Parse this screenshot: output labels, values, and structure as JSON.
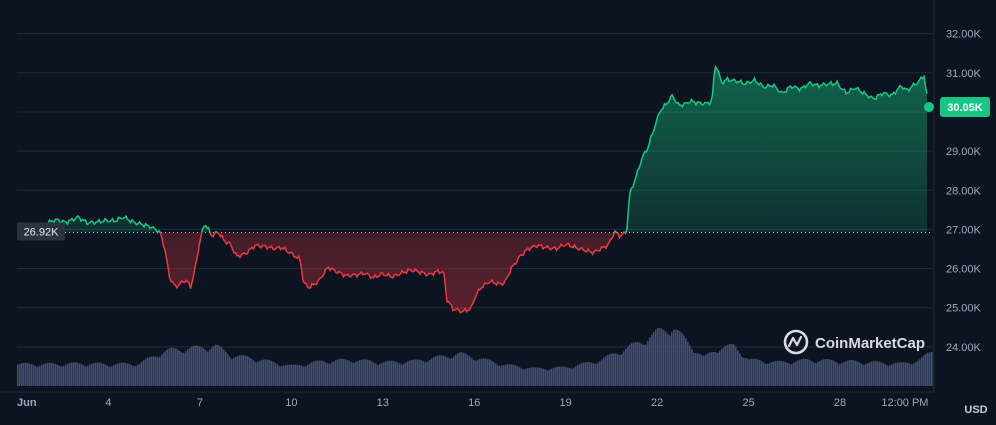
{
  "watermark": {
    "brand": "CoinMarketCap"
  },
  "colors": {
    "background": "#0d1421",
    "grid": "#222a38",
    "up": "#16c784",
    "down": "#ea3943",
    "volume": "#4b5a86",
    "axis_text": "#a1a7bb",
    "baseline_dots": "#b8bdcc",
    "ref_label_bg": "#2b3242"
  },
  "chart_data": {
    "type": "area",
    "currency_label": "USD",
    "reference_value": 26920,
    "reference_label": "26.92K",
    "current_value": 30050,
    "current_label": "30.05K",
    "y_axis": {
      "ticks": [
        24000,
        25000,
        26000,
        27000,
        28000,
        29000,
        30000,
        31000,
        32000
      ],
      "tick_labels": [
        "24.00K",
        "25.00K",
        "26.00K",
        "27.00K",
        "28.00K",
        "29.00K",
        "30.00K",
        "31.00K",
        "32.00K"
      ],
      "ylim": [
        23000,
        32400
      ]
    },
    "x_axis": {
      "xlim": [
        1,
        31.05
      ],
      "ticks": [
        1,
        4,
        7,
        10,
        13,
        16,
        19,
        22,
        25,
        28,
        31
      ],
      "tick_labels": [
        "Jun",
        "4",
        "7",
        "10",
        "13",
        "16",
        "19",
        "22",
        "25",
        "28",
        "12:00 PM"
      ]
    },
    "price_series": {
      "name": "",
      "days": [
        1,
        1.3,
        1.6,
        2,
        2.3,
        2.6,
        3,
        3.3,
        3.6,
        3.9,
        4.2,
        4.5,
        4.8,
        5.1,
        5.4,
        5.7,
        5.75,
        5.85,
        6.0,
        6.2,
        6.4,
        6.55,
        6.7,
        6.85,
        7.0,
        7.15,
        7.25,
        7.4,
        7.6,
        7.8,
        8.0,
        8.2,
        8.5,
        8.8,
        9.1,
        9.4,
        9.7,
        10.0,
        10.3,
        10.4,
        10.6,
        10.9,
        11.2,
        11.5,
        11.8,
        12.1,
        12.4,
        12.7,
        13.0,
        13.3,
        13.6,
        13.9,
        14.2,
        14.5,
        14.8,
        15.0,
        15.1,
        15.3,
        15.6,
        15.9,
        16.0,
        16.2,
        16.5,
        16.8,
        17.0,
        17.2,
        17.5,
        17.8,
        18.1,
        18.4,
        18.7,
        19.0,
        19.3,
        19.6,
        19.9,
        20.2,
        20.4,
        20.6,
        20.8,
        20.9,
        21.0,
        21.1,
        21.3,
        21.5,
        21.7,
        21.9,
        22.1,
        22.3,
        22.5,
        22.7,
        22.9,
        23.1,
        23.3,
        23.6,
        23.8,
        23.9,
        24.0,
        24.1,
        24.3,
        24.6,
        24.9,
        25.2,
        25.5,
        25.8,
        26.1,
        26.4,
        26.7,
        27.0,
        27.3,
        27.6,
        27.9,
        28.2,
        28.5,
        28.8,
        29.1,
        29.4,
        29.7,
        30.0,
        30.2,
        30.4,
        30.6,
        30.75,
        30.85,
        31.05
      ],
      "values": [
        27100,
        26950,
        27000,
        27150,
        27250,
        27200,
        27300,
        27150,
        27200,
        27250,
        27200,
        27300,
        27200,
        27150,
        27050,
        26900,
        26750,
        26500,
        25800,
        25550,
        25650,
        25700,
        25500,
        26000,
        26700,
        27150,
        27050,
        26850,
        26950,
        26700,
        26600,
        26300,
        26400,
        26600,
        26550,
        26500,
        26550,
        26400,
        26200,
        25600,
        25500,
        25700,
        26050,
        25900,
        25800,
        25850,
        25900,
        25750,
        25850,
        25800,
        25900,
        25950,
        25900,
        25850,
        25950,
        25900,
        25200,
        24950,
        24900,
        25000,
        25250,
        25500,
        25650,
        25600,
        25650,
        26000,
        26300,
        26500,
        26600,
        26550,
        26500,
        26600,
        26550,
        26500,
        26400,
        26500,
        26600,
        26950,
        26850,
        26900,
        26950,
        27900,
        28300,
        28800,
        29100,
        29600,
        30050,
        30200,
        30400,
        30150,
        30200,
        30300,
        30250,
        30200,
        30250,
        31200,
        31050,
        30750,
        30850,
        30800,
        30700,
        30800,
        30650,
        30700,
        30450,
        30650,
        30600,
        30750,
        30650,
        30700,
        30750,
        30500,
        30600,
        30450,
        30350,
        30500,
        30400,
        30650,
        30550,
        30700,
        30800,
        30950,
        30400,
        30050
      ]
    },
    "volume_series": {
      "name": "",
      "days": [
        1,
        2,
        3,
        4,
        5,
        5.6,
        6,
        6.5,
        7,
        7.5,
        8,
        9,
        10,
        11,
        12,
        13,
        14,
        15,
        15.5,
        16,
        17,
        18,
        19,
        20,
        20.5,
        21,
        21.5,
        22,
        22.5,
        23,
        23.5,
        24,
        24.5,
        25,
        26,
        27,
        28,
        29,
        30,
        30.6,
        31.05
      ],
      "relative_values": [
        0.35,
        0.35,
        0.36,
        0.35,
        0.36,
        0.52,
        0.58,
        0.6,
        0.62,
        0.64,
        0.5,
        0.42,
        0.32,
        0.4,
        0.42,
        0.38,
        0.4,
        0.48,
        0.52,
        0.46,
        0.34,
        0.28,
        0.3,
        0.4,
        0.5,
        0.62,
        0.72,
        0.88,
        0.94,
        0.7,
        0.45,
        0.62,
        0.64,
        0.42,
        0.38,
        0.42,
        0.4,
        0.38,
        0.36,
        0.42,
        0.58
      ]
    }
  }
}
